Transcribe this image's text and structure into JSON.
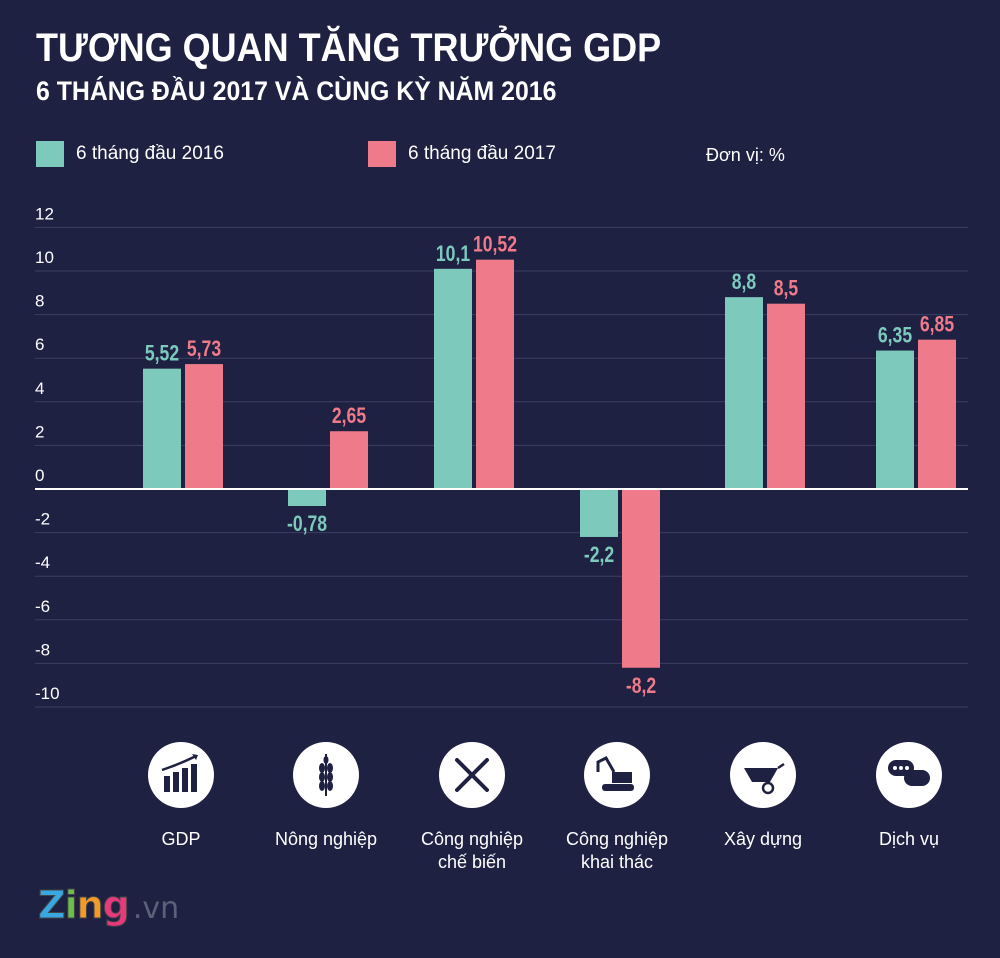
{
  "header": {
    "title": "TƯƠNG QUAN TĂNG TRƯỞNG GDP",
    "subtitle": "6 THÁNG ĐẦU 2017 VÀ CÙNG KỲ NĂM 2016"
  },
  "unit_label": "Đơn vị: %",
  "colors": {
    "background": "#1e2142",
    "series_2016": "#7dcabd",
    "series_2017": "#ef7a89",
    "grid": "#3b3f62"
  },
  "chart_data": {
    "type": "bar",
    "title": "TƯƠNG QUAN TĂNG TRƯỞNG GDP",
    "ylim": [
      -10,
      12
    ],
    "yticks": [
      "12",
      "10",
      "8",
      "6",
      "4",
      "2",
      "0",
      "-2",
      "-4",
      "-6",
      "-8",
      "-10"
    ],
    "ytick_values": [
      12,
      10,
      8,
      6,
      4,
      2,
      0,
      -2,
      -4,
      -6,
      -8,
      -10
    ],
    "grid": true,
    "legend_position": "top-left",
    "categories": [
      "GDP",
      "Nông nghiệp",
      "Công nghiệp chế biến",
      "Công nghiệp khai thác",
      "Xây dựng",
      "Dịch vụ"
    ],
    "category_lines": [
      [
        "GDP"
      ],
      [
        "Nông nghiệp"
      ],
      [
        "Công nghiệp",
        "chế biến"
      ],
      [
        "Công nghiệp",
        "khai thác"
      ],
      [
        "Xây dựng"
      ],
      [
        "Dịch vụ"
      ]
    ],
    "category_icons": [
      "bar-chart-growth-icon",
      "wheat-icon",
      "fork-knife-icon",
      "excavator-icon",
      "wheelbarrow-icon",
      "chat-bubbles-icon"
    ],
    "series": [
      {
        "name": "6 tháng đầu 2016",
        "values": [
          5.52,
          -0.78,
          10.1,
          -2.2,
          8.8,
          6.35
        ],
        "labels": [
          "5,52",
          "-0,78",
          "10,1",
          "-2,2",
          "8,8",
          "6,35"
        ]
      },
      {
        "name": "6 tháng đầu 2017",
        "values": [
          5.73,
          2.65,
          10.52,
          -8.2,
          8.5,
          6.85
        ],
        "labels": [
          "5,73",
          "2,65",
          "10,52",
          "-8,2",
          "8,5",
          "6,85"
        ]
      }
    ]
  },
  "logo": {
    "text": "Zing",
    "suffix": ".vn"
  }
}
